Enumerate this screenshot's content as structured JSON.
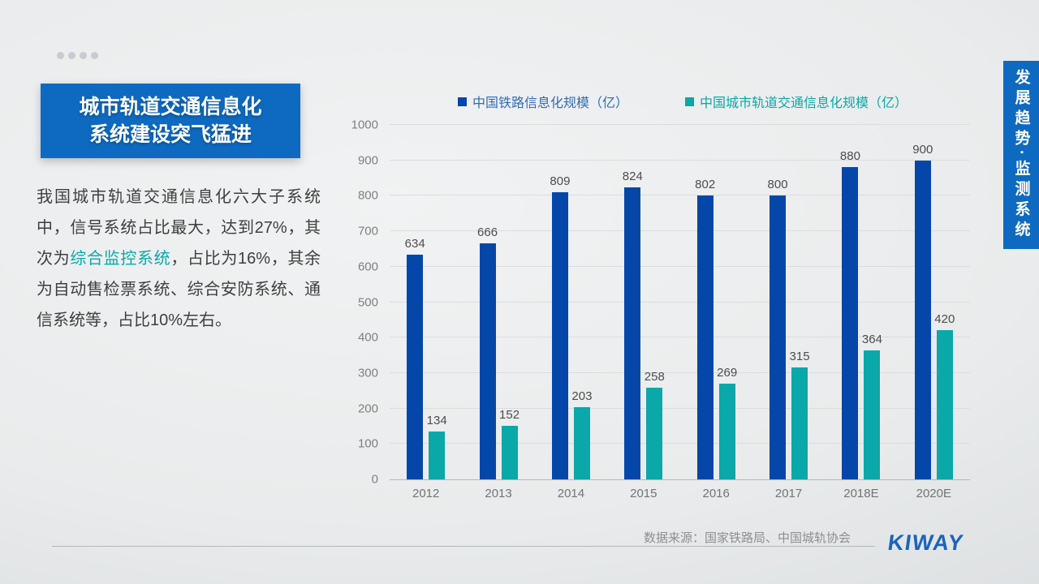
{
  "slide": {
    "title": {
      "line1": "城市轨道交通信息化",
      "line2": "系统建设突飞猛进"
    },
    "paragraph": {
      "part1": "我国城市轨道交通信息化六大子系统中，信号系统占比最大，达到27%，其次为",
      "highlight": "综合监控系统",
      "part2": "，占比为16%，其余为自动售检票系统、综合安防系统、通信系统等，占比10%左右。"
    },
    "side_tab_label": "发展趋势·监测系统",
    "footer": {
      "source": "数据来源：国家铁路局、中国城轨协会",
      "logo_text": "KIWAY"
    }
  },
  "chart_data": {
    "type": "bar",
    "title": "",
    "categories": [
      "2012",
      "2013",
      "2014",
      "2015",
      "2016",
      "2017",
      "2018E",
      "2020E"
    ],
    "series": [
      {
        "name": "中国铁路信息化规模（亿）",
        "color": "#0547a8",
        "label_color": "#2e6db8",
        "values": [
          634,
          666,
          809,
          824,
          802,
          800,
          880,
          900
        ]
      },
      {
        "name": "中国城市轨道交通信息化规模（亿）",
        "color": "#0aa8a8",
        "label_color": "#0aa8a8",
        "values": [
          134,
          152,
          203,
          258,
          269,
          315,
          364,
          420
        ]
      }
    ],
    "ylim": [
      0,
      1000
    ],
    "ytick_step": 100,
    "grid": true,
    "legend_position": "top"
  },
  "colors": {
    "accent_blue": "#0e6ac0",
    "bar_blue": "#0547a8",
    "bar_teal": "#0aa8a8",
    "logo_blue": "#1d63bb",
    "background_gray": "#e9ebec"
  }
}
